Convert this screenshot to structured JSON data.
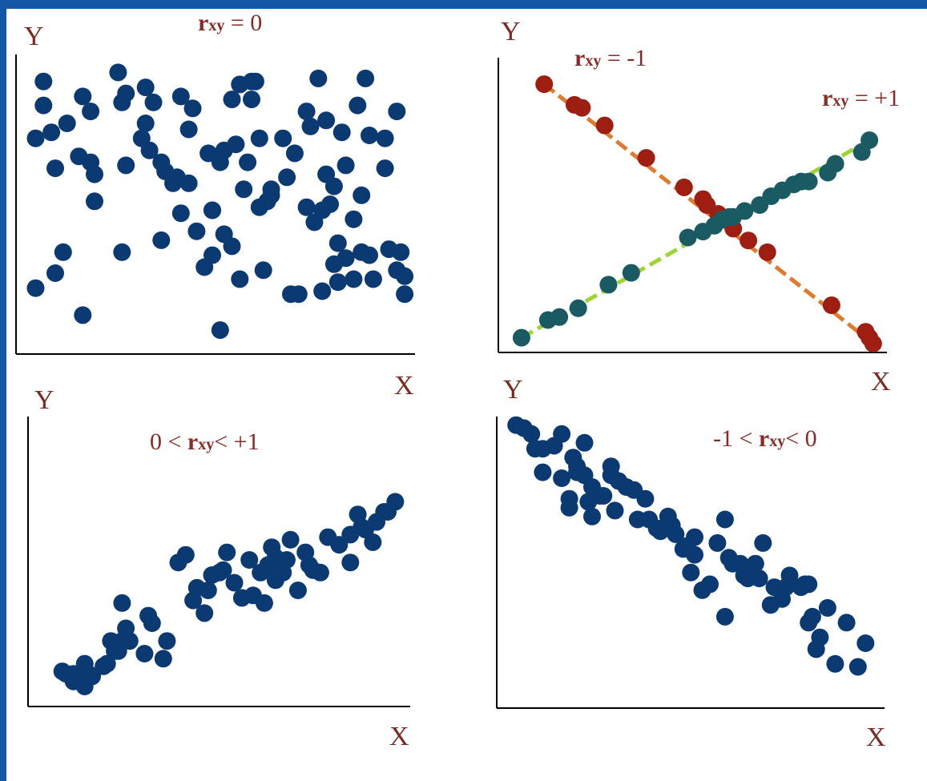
{
  "colors": {
    "frame": "#1258a6",
    "points": "#0b3a72",
    "neg_points": "#9e1e12",
    "neg_line": "#e07b2e",
    "pos_line": "#9ed434",
    "pos_points": "#1a5a63",
    "annotation": "#8a2a25",
    "axis_letter": "#7a2b21"
  },
  "chart_data": [
    {
      "type": "scatter",
      "id": "top-left",
      "title": "",
      "xlabel": "X",
      "ylabel": "Y",
      "xlim": [
        0,
        100
      ],
      "ylim": [
        0,
        100
      ],
      "annotations": [
        {
          "r": "r",
          "sub": "xy",
          "text": " = 0"
        }
      ],
      "series": [
        {
          "color": "points",
          "x": [
            5,
            5,
            7,
            7,
            9,
            10,
            10,
            12,
            13,
            16,
            17,
            17,
            19,
            19,
            20,
            20,
            26,
            27,
            27,
            28,
            28,
            32,
            33,
            33,
            34,
            35,
            37,
            37,
            38,
            40,
            41,
            42,
            42,
            44,
            44,
            45,
            46,
            48,
            49,
            50,
            50,
            50,
            52,
            52,
            53,
            53,
            55,
            55,
            56,
            57,
            57,
            58,
            59,
            60,
            60,
            61,
            62,
            62,
            63,
            64,
            65,
            65,
            68,
            69,
            70,
            71,
            72,
            74,
            74,
            75,
            76,
            77,
            78,
            78,
            79,
            79,
            80,
            81,
            81,
            82,
            82,
            83,
            84,
            84,
            86,
            86,
            87,
            88,
            88,
            89,
            90,
            90,
            91,
            94,
            94,
            95,
            97,
            97,
            98,
            99,
            99
          ],
          "y": [
            22,
            72,
            83,
            91,
            74,
            62,
            27,
            34,
            77,
            66,
            86,
            13,
            81,
            64,
            60,
            51,
            94,
            84,
            34,
            63,
            87,
            72,
            89,
            77,
            68,
            84,
            64,
            38,
            61,
            57,
            59,
            86,
            47,
            75,
            57,
            82,
            41,
            29,
            67,
            48,
            33,
            48,
            64,
            8,
            68,
            40,
            36,
            85,
            70,
            90,
            25,
            55,
            64,
            85,
            91,
            91,
            49,
            72,
            28,
            51,
            53,
            55,
            72,
            59,
            20,
            67,
            20,
            81,
            49,
            76,
            44,
            92,
            21,
            48,
            78,
            60,
            50,
            56,
            30,
            37,
            24,
            74,
            32,
            63,
            45,
            25,
            83,
            34,
            53,
            92,
            33,
            73,
            25,
            62,
            72,
            35,
            81,
            28,
            34,
            26,
            20
          ]
        }
      ]
    },
    {
      "type": "scatter",
      "id": "top-right",
      "title": "",
      "xlabel": "X",
      "ylabel": "Y",
      "xlim": [
        0,
        100
      ],
      "ylim": [
        0,
        100
      ],
      "annotations": [
        {
          "r": "r",
          "sub": "xy",
          "text": " = -1"
        },
        {
          "r": "r",
          "sub": "xy",
          "text": " = +1"
        }
      ],
      "series": [
        {
          "color": "neg_points",
          "line": "neg_line",
          "x": [
            10,
            18,
            20,
            26,
            37,
            47,
            52,
            53,
            56,
            58,
            60,
            64,
            69,
            86,
            95,
            96,
            97
          ],
          "y": [
            91,
            84,
            83,
            77,
            66,
            56,
            52,
            50,
            47,
            45,
            42,
            38,
            34,
            16,
            7,
            5,
            3
          ]
        },
        {
          "color": "pos_points",
          "line": "pos_line",
          "x": [
            4,
            11,
            14,
            19,
            27,
            33,
            48,
            52,
            55,
            57,
            59,
            60,
            63,
            67,
            70,
            73,
            76,
            78,
            80,
            85,
            87,
            94,
            96
          ],
          "y": [
            5,
            11,
            12,
            15,
            23,
            27,
            39,
            41,
            43,
            45,
            46,
            46,
            48,
            50,
            53,
            55,
            57,
            58,
            58,
            61,
            64,
            68,
            72
          ]
        }
      ]
    },
    {
      "type": "scatter",
      "id": "bottom-left",
      "title": "",
      "xlabel": "X",
      "ylabel": "Y",
      "xlim": [
        0,
        100
      ],
      "ylim": [
        0,
        100
      ],
      "annotations": [
        {
          "prefix": "0 < ",
          "r": "r",
          "sub": "xy",
          "text": "< +1"
        }
      ],
      "series": [
        {
          "color": "points",
          "x": [
            7,
            8,
            10,
            10,
            13,
            13,
            14,
            15,
            18,
            19,
            20,
            21,
            22,
            22,
            23,
            23,
            24,
            25,
            29,
            30,
            31,
            34,
            35,
            38,
            40,
            42,
            43,
            45,
            46,
            47,
            49,
            50,
            51,
            53,
            55,
            57,
            58,
            60,
            61,
            62,
            63,
            64,
            64,
            66,
            67,
            68,
            70,
            72,
            73,
            74,
            76,
            78,
            81,
            84,
            84,
            86,
            87,
            88,
            90,
            91,
            93,
            94,
            96
          ],
          "y": [
            12,
            11,
            8,
            11,
            6,
            15,
            11,
            10,
            14,
            15,
            24,
            20,
            22,
            20,
            24,
            39,
            29,
            24,
            19,
            34,
            31,
            17,
            24,
            55,
            58,
            40,
            45,
            35,
            44,
            50,
            51,
            52,
            59,
            47,
            41,
            56,
            42,
            51,
            39,
            54,
            61,
            57,
            48,
            51,
            56,
            64,
            44,
            59,
            54,
            52,
            51,
            65,
            62,
            66,
            55,
            74,
            69,
            68,
            63,
            71,
            75,
            75,
            79
          ]
        }
      ]
    },
    {
      "type": "scatter",
      "id": "bottom-right",
      "title": "",
      "xlabel": "X",
      "ylabel": "Y",
      "xlim": [
        0,
        100
      ],
      "ylim": [
        0,
        100
      ],
      "annotations": [
        {
          "prefix": "-1 < ",
          "r": "r",
          "sub": "xy",
          "text": "< 0"
        }
      ],
      "series": [
        {
          "color": "points",
          "x": [
            3,
            5,
            7,
            8,
            10,
            10,
            13,
            15,
            15,
            17,
            17,
            18,
            19,
            19,
            21,
            21,
            22,
            23,
            23,
            25,
            26,
            28,
            28,
            29,
            30,
            32,
            34,
            35,
            37,
            38,
            40,
            41,
            43,
            44,
            45,
            47,
            48,
            49,
            50,
            50,
            52,
            54,
            56,
            58,
            58,
            59,
            60,
            62,
            63,
            64,
            66,
            67,
            68,
            70,
            71,
            73,
            74,
            75,
            78,
            79,
            80,
            80,
            81,
            82,
            83,
            85,
            87,
            90,
            93,
            95
          ],
          "y": [
            96,
            95,
            93,
            88,
            88,
            80,
            89,
            93,
            78,
            68,
            71,
            85,
            82,
            80,
            79,
            90,
            70,
            75,
            65,
            72,
            72,
            82,
            79,
            67,
            77,
            75,
            74,
            64,
            71,
            64,
            61,
            60,
            65,
            62,
            59,
            54,
            55,
            46,
            58,
            52,
            40,
            42,
            56,
            31,
            64,
            51,
            49,
            49,
            45,
            44,
            49,
            44,
            56,
            35,
            41,
            37,
            41,
            45,
            41,
            42,
            42,
            29,
            31,
            20,
            24,
            34,
            15,
            29,
            14,
            22
          ]
        }
      ]
    }
  ]
}
